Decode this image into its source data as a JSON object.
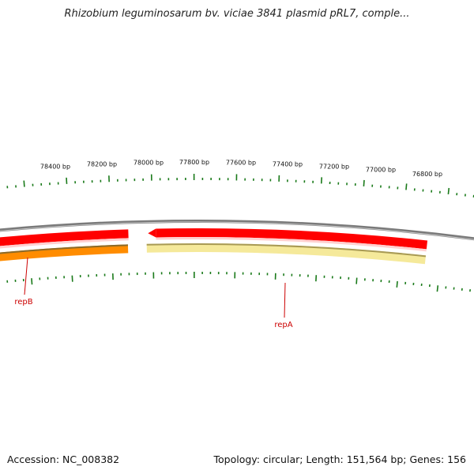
{
  "title": "Rhizobium leguminosarum bv. viciae 3841 plasmid pRL7, comple...",
  "colors": {
    "backbone": "#7a7a7a",
    "tick": "#1a7a1a",
    "gene_forward": "#ff0000",
    "gene_forward_light": "#ffd0d0",
    "gene_repB_reverse": "#ff8c00",
    "gene_repB_reverse_edge": "#8a6a2a",
    "gene_repA_reverse": "#f5e99a",
    "gene_repA_reverse_edge": "#a89a55",
    "label": "#cc0000"
  },
  "ruler": {
    "unit": "bp",
    "labels": [
      "78400 bp",
      "78200 bp",
      "78000 bp",
      "77800 bp",
      "77600 bp",
      "77400 bp",
      "77200 bp",
      "77000 bp",
      "76800 bp"
    ]
  },
  "genes": [
    {
      "name": "repB",
      "strand": "reverse"
    },
    {
      "name": "repA",
      "strand": "reverse"
    }
  ],
  "footer": {
    "accession": "Accession: NC_008382",
    "stats": "Topology: circular; Length: 151,564 bp; Genes: 156"
  }
}
